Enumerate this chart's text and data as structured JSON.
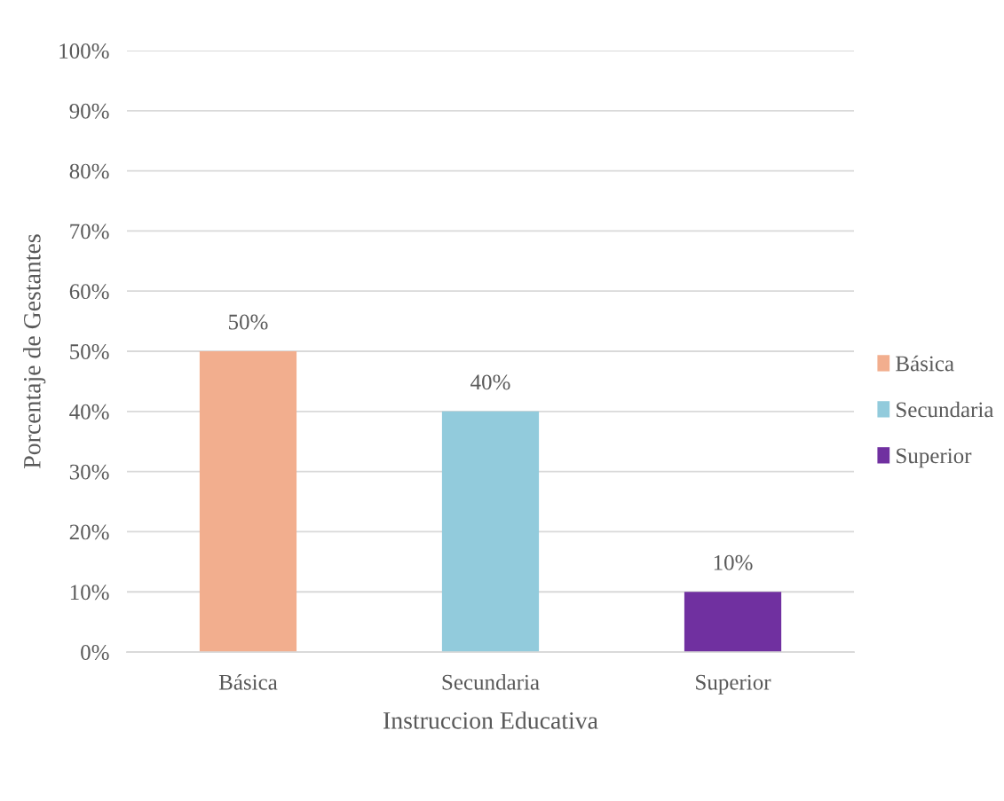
{
  "chart_data": {
    "type": "bar",
    "stacked": true,
    "xlabel": "Instruccion Educativa",
    "ylabel": "Porcentaje de Gestantes",
    "categories": [
      "Básica",
      "Secundaria",
      "Superior"
    ],
    "series": [
      {
        "name": "Básica",
        "color": "#f2ae8e",
        "values": [
          50,
          null,
          null
        ],
        "value_labels": [
          "50%",
          null,
          null
        ]
      },
      {
        "name": "Secundaria",
        "color": "#92cbdc",
        "values": [
          null,
          40,
          null
        ],
        "value_labels": [
          null,
          "40%",
          null
        ]
      },
      {
        "name": "Superior",
        "color": "#7030a0",
        "values": [
          null,
          null,
          10
        ],
        "value_labels": [
          null,
          null,
          "10%"
        ]
      }
    ],
    "ylim": [
      0,
      100
    ],
    "yticks": [
      {
        "value": 0,
        "label": "0%"
      },
      {
        "value": 10,
        "label": "10%"
      },
      {
        "value": 20,
        "label": "20%"
      },
      {
        "value": 30,
        "label": "30%"
      },
      {
        "value": 40,
        "label": "40%"
      },
      {
        "value": 50,
        "label": "50%"
      },
      {
        "value": 60,
        "label": "60%"
      },
      {
        "value": 70,
        "label": "70%"
      },
      {
        "value": 80,
        "label": "80%"
      },
      {
        "value": 90,
        "label": "90%"
      },
      {
        "value": 100,
        "label": "100%"
      }
    ],
    "grid": "y",
    "legend": "right"
  }
}
